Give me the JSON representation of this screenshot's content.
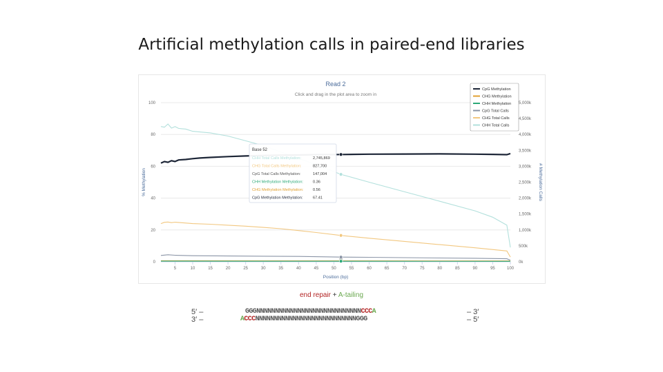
{
  "slide": {
    "title": "Artificial methylation calls in paired-end libraries"
  },
  "chart_data": {
    "type": "line",
    "title": "Read 2",
    "subtitle": "Click and drag in the plot area to zoom in",
    "xlabel": "Position (bp)",
    "ylabel_left": "% Methylation",
    "ylabel_right": "# Methylation Calls",
    "xlim": [
      1,
      100
    ],
    "ylim_left": [
      0,
      100
    ],
    "ylim_right": [
      0,
      5000000
    ],
    "x_ticks": [
      "5",
      "10",
      "15",
      "20",
      "25",
      "30",
      "35",
      "40",
      "45",
      "50",
      "55",
      "60",
      "65",
      "70",
      "75",
      "80",
      "85",
      "90",
      "95",
      "100"
    ],
    "y_ticks_left": [
      "0",
      "20",
      "40",
      "60",
      "80",
      "100"
    ],
    "y_ticks_right": [
      "0k",
      "500k",
      "1,000k",
      "1,500k",
      "2,000k",
      "2,500k",
      "3,000k",
      "3,500k",
      "4,000k",
      "4,500k",
      "5,000k"
    ],
    "grid": true,
    "legend_position": "top-right",
    "series": [
      {
        "name": "CpG Methylation",
        "axis": "left",
        "color": "#1c2536",
        "points": [
          [
            1,
            62
          ],
          [
            2,
            63
          ],
          [
            3,
            62.5
          ],
          [
            4,
            63.5
          ],
          [
            5,
            63
          ],
          [
            6,
            64
          ],
          [
            8,
            64.3
          ],
          [
            10,
            64.8
          ],
          [
            12,
            65.2
          ],
          [
            15,
            65.6
          ],
          [
            20,
            66.1
          ],
          [
            25,
            66.5
          ],
          [
            30,
            66.8
          ],
          [
            35,
            67
          ],
          [
            40,
            67.1
          ],
          [
            45,
            67.3
          ],
          [
            52,
            67.41
          ],
          [
            60,
            67.6
          ],
          [
            70,
            67.7
          ],
          [
            80,
            67.8
          ],
          [
            90,
            67.6
          ],
          [
            95,
            67.5
          ],
          [
            99,
            67.3
          ],
          [
            100,
            68
          ]
        ]
      },
      {
        "name": "CHG Methylation",
        "axis": "left",
        "color": "#e0a030",
        "points": [
          [
            1,
            0.6
          ],
          [
            52,
            0.56
          ],
          [
            100,
            0.5
          ]
        ]
      },
      {
        "name": "CHH Methylation",
        "axis": "left",
        "color": "#2aa876",
        "points": [
          [
            1,
            0.4
          ],
          [
            52,
            0.36
          ],
          [
            100,
            0.3
          ]
        ]
      },
      {
        "name": "CpG Total Calls",
        "axis": "right",
        "color": "#8a94a6",
        "points": [
          [
            1,
            200000
          ],
          [
            3,
            220000
          ],
          [
            5,
            205000
          ],
          [
            10,
            190000
          ],
          [
            20,
            182000
          ],
          [
            30,
            175000
          ],
          [
            40,
            168000
          ],
          [
            52,
            147004
          ],
          [
            60,
            140000
          ],
          [
            70,
            130000
          ],
          [
            80,
            120000
          ],
          [
            90,
            110000
          ],
          [
            99,
            95000
          ],
          [
            100,
            50000
          ]
        ]
      },
      {
        "name": "CHG Total Calls",
        "axis": "right",
        "color": "#f2c77f",
        "points": [
          [
            1,
            1200000
          ],
          [
            2,
            1240000
          ],
          [
            3,
            1250000
          ],
          [
            4,
            1230000
          ],
          [
            5,
            1245000
          ],
          [
            6,
            1235000
          ],
          [
            10,
            1200000
          ],
          [
            15,
            1180000
          ],
          [
            20,
            1150000
          ],
          [
            25,
            1120000
          ],
          [
            30,
            1080000
          ],
          [
            35,
            1040000
          ],
          [
            40,
            980000
          ],
          [
            45,
            920000
          ],
          [
            52,
            827700
          ],
          [
            60,
            740000
          ],
          [
            70,
            640000
          ],
          [
            80,
            540000
          ],
          [
            90,
            440000
          ],
          [
            99,
            340000
          ],
          [
            100,
            150000
          ]
        ]
      },
      {
        "name": "CHH Total Calls",
        "axis": "right",
        "color": "#b2e0dc",
        "points": [
          [
            1,
            4250000
          ],
          [
            2,
            4230000
          ],
          [
            3,
            4330000
          ],
          [
            4,
            4200000
          ],
          [
            5,
            4250000
          ],
          [
            6,
            4190000
          ],
          [
            7,
            4180000
          ],
          [
            8,
            4170000
          ],
          [
            10,
            4100000
          ],
          [
            15,
            4050000
          ],
          [
            20,
            3950000
          ],
          [
            25,
            3800000
          ],
          [
            30,
            3650000
          ],
          [
            35,
            3450000
          ],
          [
            40,
            3250000
          ],
          [
            45,
            3050000
          ],
          [
            52,
            2745869
          ],
          [
            60,
            2500000
          ],
          [
            70,
            2200000
          ],
          [
            80,
            1900000
          ],
          [
            90,
            1600000
          ],
          [
            95,
            1400000
          ],
          [
            99,
            1150000
          ],
          [
            100,
            450000
          ]
        ]
      }
    ],
    "tooltip": {
      "header": "Base 52",
      "rows": [
        {
          "label": "CHH Total Calls Methylation:",
          "value": "2,745,869",
          "color": "#b2e0dc"
        },
        {
          "label": "CHG Total Calls Methylation:",
          "value": "827,700",
          "color": "#f2c77f"
        },
        {
          "label": "CpG Total Calls Methylation:",
          "value": "147,004",
          "color": "#555555"
        },
        {
          "label": "CHH Methylation Methylation:",
          "value": "0.36",
          "color": "#2aa876"
        },
        {
          "label": "CHG Methylation Methylation:",
          "value": "0.56",
          "color": "#e0a030"
        },
        {
          "label": "CpG Methylation Methylation:",
          "value": "67.41",
          "color": "#1c2536"
        }
      ]
    }
  },
  "diagram": {
    "caption_main": "end repair",
    "caption_plus": "+",
    "caption_tail": "A-tailing",
    "top_left": "5′ –",
    "bottom_left": "3′ –",
    "top_right": "– 3′",
    "bottom_right": "– 5′",
    "top_seq_core": "GGGNNNNNNNNNNNNNNNNNNNNNNNNNNNN",
    "top_seq_red": "CCC",
    "top_seq_green": "A",
    "bottom_seq_green": "A",
    "bottom_seq_red": "CCC",
    "bottom_seq_core": "NNNNNNNNNNNNNNNNNNNNNNNNNNNGGG"
  }
}
